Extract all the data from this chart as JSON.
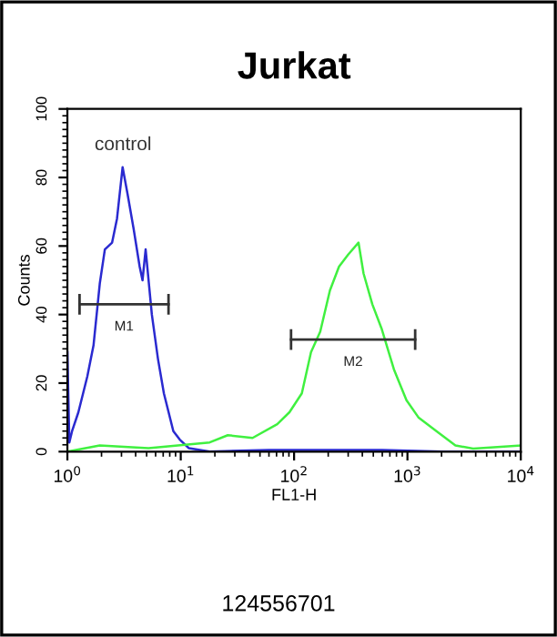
{
  "chart_data": {
    "type": "line",
    "title": "Jurkat",
    "xlabel": "FL1-H",
    "ylabel": "Counts",
    "log": "x",
    "xlim": [
      1,
      10000
    ],
    "ylim": [
      0,
      100
    ],
    "xticks": [
      {
        "value": 1,
        "label": "10$^{0}$"
      },
      {
        "value": 10,
        "label": "10$^{1}$"
      },
      {
        "value": 100,
        "label": "10$^{2}$"
      },
      {
        "value": 1000,
        "label": "10$^{3}$"
      },
      {
        "value": 10000,
        "label": "10$^{4}$"
      }
    ],
    "yticks": [
      0,
      20,
      40,
      60,
      80,
      100
    ],
    "grid": false,
    "legend": false,
    "marker": "none",
    "line_style": "solid",
    "series": [
      {
        "color": "#2a2ad0",
        "x": [
          1.0,
          1.04,
          1.1,
          1.25,
          1.5,
          1.7,
          1.93,
          2.14,
          2.48,
          2.74,
          3.07,
          3.4,
          3.84,
          4.34,
          4.6,
          4.9,
          5.56,
          6.3,
          7.1,
          8.6,
          9.8,
          11.8,
          18,
          60,
          170,
          600,
          2000,
          10000
        ],
        "values": [
          29,
          2.7,
          6,
          11.5,
          22,
          31,
          49,
          59,
          61,
          68,
          83,
          75,
          65,
          54,
          50,
          59,
          40,
          27,
          17,
          6,
          3.5,
          1,
          0,
          0.5,
          0.5,
          0.5,
          0,
          0
        ]
      },
      {
        "color": "#40f040",
        "x": [
          1,
          1.93,
          5.2,
          18,
          26,
          43,
          71,
          91,
          117,
          141,
          170,
          207,
          249,
          300,
          370,
          410,
          490,
          590,
          760,
          980,
          1250,
          1800,
          2650,
          3800,
          10000
        ],
        "values": [
          0,
          1.8,
          1,
          2.7,
          4.8,
          4,
          8,
          11.5,
          17,
          29,
          35,
          47,
          54,
          57.5,
          61,
          52,
          43,
          36,
          24,
          15,
          10,
          6,
          1.8,
          0.9,
          1.8
        ]
      },
      {
        "name": "M1",
        "color": "#333333",
        "x": [
          1.28,
          7.8
        ],
        "values": [
          43,
          43
        ],
        "errors": [
          3,
          3
        ]
      },
      {
        "name": "M2",
        "color": "#333333",
        "x": [
          94,
          1170
        ],
        "values": [
          32.7,
          32.7
        ],
        "errors": [
          3,
          3
        ]
      }
    ],
    "annotations": [
      "control",
      "124556701"
    ]
  }
}
